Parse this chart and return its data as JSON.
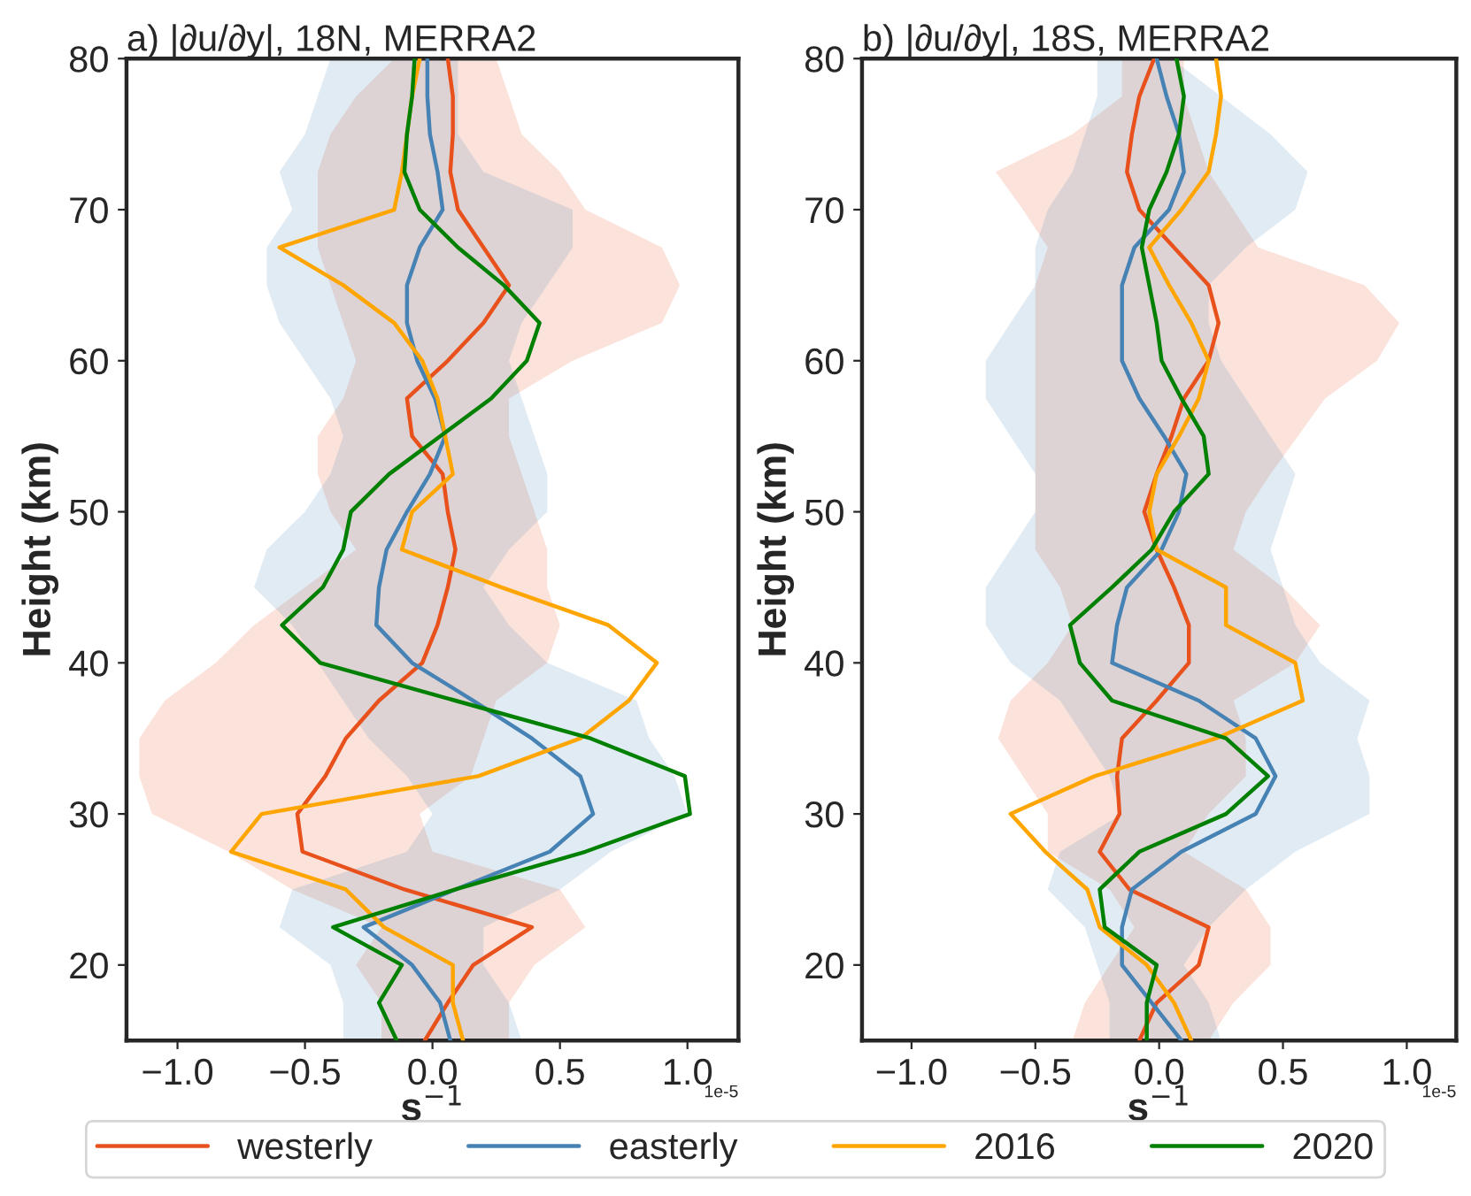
{
  "chart_data": [
    {
      "type": "line",
      "title": "a) |∂u/∂y|, 18N, MERRA2",
      "xlabel": "s$^{−1}$",
      "ylabel": "Height (km)",
      "orientation": "horizontal",
      "legend": "bottom",
      "grid": false,
      "annotations": [
        "1e-5"
      ],
      "x": [
        15,
        17.5,
        20,
        22.5,
        25,
        27.5,
        30,
        32.5,
        35,
        37.5,
        40,
        42.5,
        45,
        47.5,
        50,
        52.5,
        55,
        57.5,
        60,
        62.5,
        65,
        67.5,
        70,
        72.5,
        75,
        77.5,
        80
      ],
      "xlim": [
        -1.2,
        1.2
      ],
      "xticks": [
        {
          "value": -1.0,
          "label": "−1.0"
        },
        {
          "value": -0.5,
          "label": "−0.5"
        },
        {
          "value": 0.0,
          "label": "0.0"
        },
        {
          "value": 0.5,
          "label": "0.5"
        },
        {
          "value": 1.0,
          "label": "1.0"
        }
      ],
      "ylim": [
        15,
        80
      ],
      "yticks": [
        20,
        30,
        40,
        50,
        60,
        70,
        80
      ],
      "series": [
        {
          "name": "westerly",
          "color": "#e8501c",
          "values": [
            -0.03,
            0.06,
            0.16,
            0.39,
            -0.11,
            -0.51,
            -0.53,
            -0.42,
            -0.34,
            -0.21,
            -0.04,
            0.02,
            0.06,
            0.09,
            0.06,
            0.04,
            -0.08,
            -0.1,
            0.06,
            0.2,
            0.3,
            0.2,
            0.1,
            0.07,
            0.08,
            0.08,
            0.06
          ],
          "lower": [
            -0.2,
            -0.2,
            -0.3,
            -0.2,
            -0.55,
            -0.8,
            -1.1,
            -1.15,
            -1.15,
            -1.05,
            -0.85,
            -0.7,
            -0.5,
            -0.3,
            -0.4,
            -0.45,
            -0.45,
            -0.35,
            -0.3,
            -0.35,
            -0.4,
            -0.45,
            -0.45,
            -0.45,
            -0.4,
            -0.3,
            -0.15
          ],
          "upper": [
            0.3,
            0.3,
            0.4,
            0.6,
            0.5,
            0.0,
            -0.05,
            0.15,
            0.2,
            0.25,
            0.45,
            0.5,
            0.45,
            0.45,
            0.4,
            0.35,
            0.3,
            0.3,
            0.55,
            0.9,
            0.97,
            0.9,
            0.6,
            0.5,
            0.35,
            0.3,
            0.25
          ]
        },
        {
          "name": "easterly",
          "color": "#4682b4",
          "values": [
            0.07,
            0.03,
            -0.08,
            -0.27,
            0.09,
            0.46,
            0.63,
            0.58,
            0.39,
            0.16,
            -0.08,
            -0.22,
            -0.21,
            -0.18,
            -0.1,
            -0.01,
            0.05,
            0.01,
            -0.06,
            -0.1,
            -0.1,
            -0.05,
            0.04,
            0.02,
            -0.01,
            -0.02,
            -0.02
          ],
          "lower": [
            -0.35,
            -0.35,
            -0.4,
            -0.6,
            -0.55,
            -0.1,
            0.0,
            -0.1,
            -0.25,
            -0.35,
            -0.45,
            -0.55,
            -0.7,
            -0.65,
            -0.5,
            -0.4,
            -0.35,
            -0.4,
            -0.5,
            -0.6,
            -0.65,
            -0.65,
            -0.55,
            -0.6,
            -0.5,
            -0.45,
            -0.4
          ],
          "upper": [
            0.35,
            0.3,
            0.2,
            0.2,
            0.5,
            0.7,
            1.0,
            0.95,
            0.85,
            0.8,
            0.45,
            0.3,
            0.2,
            0.3,
            0.45,
            0.45,
            0.4,
            0.35,
            0.3,
            0.35,
            0.45,
            0.55,
            0.55,
            0.2,
            0.1,
            0.1,
            0.1
          ]
        },
        {
          "name": "2016",
          "color": "#ffa500",
          "values": [
            0.12,
            0.08,
            0.08,
            -0.19,
            -0.34,
            -0.79,
            -0.67,
            0.18,
            0.58,
            0.77,
            0.88,
            0.69,
            0.27,
            -0.12,
            -0.08,
            0.08,
            0.05,
            0.02,
            -0.04,
            -0.15,
            -0.35,
            -0.6,
            -0.15,
            -0.12,
            -0.1,
            -0.08,
            -0.05
          ]
        },
        {
          "name": "2020",
          "color": "#008000",
          "values": [
            -0.14,
            -0.21,
            -0.12,
            -0.39,
            0.09,
            0.6,
            1.01,
            0.99,
            0.62,
            0.09,
            -0.44,
            -0.59,
            -0.43,
            -0.35,
            -0.32,
            -0.17,
            0.03,
            0.23,
            0.37,
            0.42,
            0.28,
            0.1,
            -0.05,
            -0.11,
            -0.1,
            -0.08,
            -0.07
          ]
        }
      ]
    },
    {
      "type": "line",
      "title": "b) |∂u/∂y|, 18S, MERRA2",
      "xlabel": "s$^{−1}$",
      "ylabel": "Height (km)",
      "orientation": "horizontal",
      "grid": false,
      "annotations": [
        "1e-5"
      ],
      "x": [
        15,
        17.5,
        20,
        22.5,
        25,
        27.5,
        30,
        32.5,
        35,
        37.5,
        40,
        42.5,
        45,
        47.5,
        50,
        52.5,
        55,
        57.5,
        60,
        62.5,
        65,
        67.5,
        70,
        72.5,
        75,
        77.5,
        80
      ],
      "xlim": [
        -1.2,
        1.2
      ],
      "xticks": [
        {
          "value": -1.0,
          "label": "−1.0"
        },
        {
          "value": -0.5,
          "label": "−0.5"
        },
        {
          "value": 0.0,
          "label": "0.0"
        },
        {
          "value": 0.5,
          "label": "0.5"
        },
        {
          "value": 1.0,
          "label": "1.0"
        }
      ],
      "ylim": [
        15,
        80
      ],
      "yticks": [
        20,
        30,
        40,
        50,
        60,
        70,
        80
      ],
      "series": [
        {
          "name": "westerly",
          "color": "#e8501c",
          "values": [
            -0.08,
            -0.01,
            0.16,
            0.2,
            -0.12,
            -0.24,
            -0.16,
            -0.17,
            -0.15,
            -0.01,
            0.12,
            0.12,
            0.06,
            -0.01,
            -0.06,
            -0.01,
            0.05,
            0.1,
            0.2,
            0.24,
            0.2,
            0.06,
            -0.08,
            -0.13,
            -0.11,
            -0.08,
            -0.02
          ],
          "lower": [
            -0.35,
            -0.3,
            -0.2,
            -0.1,
            -0.2,
            -0.45,
            -0.45,
            -0.55,
            -0.65,
            -0.6,
            -0.45,
            -0.35,
            -0.4,
            -0.5,
            -0.5,
            -0.5,
            -0.5,
            -0.5,
            -0.5,
            -0.5,
            -0.5,
            -0.45,
            -0.55,
            -0.66,
            -0.35,
            -0.15,
            -0.15
          ],
          "upper": [
            0.2,
            0.3,
            0.45,
            0.45,
            0.35,
            0.1,
            0.2,
            0.35,
            0.35,
            0.3,
            0.55,
            0.65,
            0.5,
            0.3,
            0.35,
            0.45,
            0.56,
            0.67,
            0.88,
            0.97,
            0.83,
            0.4,
            0.3,
            0.2,
            0.15,
            0.1,
            0.1
          ]
        },
        {
          "name": "easterly",
          "color": "#4682b4",
          "values": [
            0.09,
            -0.03,
            -0.15,
            -0.15,
            -0.11,
            0.09,
            0.39,
            0.47,
            0.39,
            0.16,
            -0.19,
            -0.17,
            -0.13,
            0.01,
            0.08,
            0.11,
            0.02,
            -0.08,
            -0.15,
            -0.15,
            -0.15,
            -0.1,
            0.04,
            0.1,
            0.08,
            0.03,
            -0.01
          ],
          "lower": [
            -0.2,
            -0.2,
            -0.25,
            -0.3,
            -0.45,
            -0.4,
            -0.15,
            -0.2,
            -0.3,
            -0.4,
            -0.6,
            -0.7,
            -0.7,
            -0.6,
            -0.5,
            -0.5,
            -0.6,
            -0.7,
            -0.7,
            -0.6,
            -0.5,
            -0.5,
            -0.45,
            -0.35,
            -0.3,
            -0.25,
            -0.25
          ],
          "upper": [
            0.25,
            0.2,
            0.1,
            0.2,
            0.35,
            0.55,
            0.85,
            0.85,
            0.8,
            0.85,
            0.65,
            0.55,
            0.5,
            0.45,
            0.5,
            0.55,
            0.45,
            0.35,
            0.25,
            0.2,
            0.2,
            0.35,
            0.55,
            0.6,
            0.45,
            0.25,
            0.05
          ]
        },
        {
          "name": "2016",
          "color": "#ffa500",
          "values": [
            0.13,
            0.06,
            -0.05,
            -0.24,
            -0.29,
            -0.46,
            -0.6,
            -0.26,
            0.23,
            0.58,
            0.55,
            0.27,
            0.27,
            -0.01,
            -0.04,
            -0.01,
            0.08,
            0.16,
            0.2,
            0.13,
            0.04,
            -0.04,
            0.09,
            0.2,
            0.23,
            0.25,
            0.23
          ]
        },
        {
          "name": "2020",
          "color": "#008000",
          "values": [
            -0.05,
            -0.05,
            -0.01,
            -0.22,
            -0.24,
            -0.08,
            0.27,
            0.44,
            0.27,
            -0.19,
            -0.32,
            -0.36,
            -0.19,
            -0.03,
            0.06,
            0.2,
            0.18,
            0.09,
            0.01,
            -0.01,
            -0.04,
            -0.07,
            -0.04,
            0.03,
            0.08,
            0.1,
            0.07
          ]
        }
      ]
    }
  ]
}
